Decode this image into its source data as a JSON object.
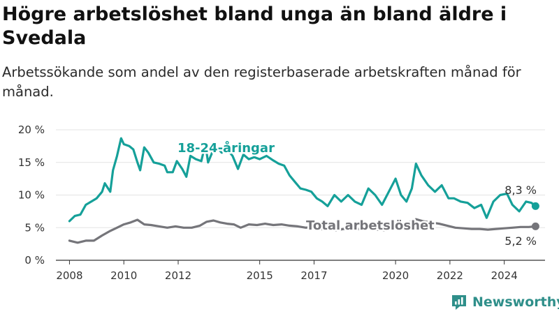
{
  "title": "Högre arbetslöshet bland unga än bland äldre i Svedala",
  "subtitle": "Arbetssökande som andel av den registerbaserade arbetskraften månad för månad.",
  "brand": "Newsworthy",
  "colors": {
    "youth": "#15a099",
    "total": "#75757a",
    "grid": "#e3e3e3",
    "axis": "#333333",
    "brand": "#2f8f8a"
  },
  "chart_data": {
    "type": "line",
    "xlim": [
      2007.5,
      2025.5
    ],
    "ylim": [
      0,
      20
    ],
    "y_ticks": [
      0,
      5,
      10,
      15,
      20
    ],
    "y_tick_labels": [
      "0 %",
      "5 %",
      "10 %",
      "15 %",
      "20 %"
    ],
    "x_ticks": [
      2008,
      2010,
      2012,
      2015,
      2017,
      2020,
      2022,
      2024
    ],
    "x_tick_labels": [
      "2008",
      "2010",
      "2012",
      "2015",
      "2017",
      "2020",
      "2022",
      "2024"
    ],
    "grid": true,
    "series": [
      {
        "name": "18-24-åringar",
        "color": "#15a099",
        "end_label": "8,3 %",
        "points": [
          [
            2008.0,
            6.0
          ],
          [
            2008.2,
            6.8
          ],
          [
            2008.4,
            7.0
          ],
          [
            2008.6,
            8.5
          ],
          [
            2008.8,
            9.0
          ],
          [
            2009.0,
            9.5
          ],
          [
            2009.2,
            10.5
          ],
          [
            2009.3,
            11.8
          ],
          [
            2009.5,
            10.5
          ],
          [
            2009.6,
            13.8
          ],
          [
            2009.75,
            16.0
          ],
          [
            2009.9,
            18.7
          ],
          [
            2010.0,
            17.8
          ],
          [
            2010.2,
            17.5
          ],
          [
            2010.35,
            17.0
          ],
          [
            2010.5,
            15.0
          ],
          [
            2010.6,
            13.8
          ],
          [
            2010.75,
            17.3
          ],
          [
            2010.9,
            16.5
          ],
          [
            2011.1,
            15.0
          ],
          [
            2011.3,
            14.8
          ],
          [
            2011.5,
            14.5
          ],
          [
            2011.6,
            13.5
          ],
          [
            2011.8,
            13.5
          ],
          [
            2011.95,
            15.2
          ],
          [
            2012.15,
            14.0
          ],
          [
            2012.3,
            12.8
          ],
          [
            2012.45,
            16.0
          ],
          [
            2012.65,
            15.5
          ],
          [
            2012.85,
            15.2
          ],
          [
            2013.0,
            17.8
          ],
          [
            2013.1,
            15.0
          ],
          [
            2013.25,
            16.5
          ],
          [
            2013.45,
            17.2
          ],
          [
            2013.6,
            16.5
          ],
          [
            2013.8,
            17.0
          ],
          [
            2014.0,
            16.0
          ],
          [
            2014.2,
            14.0
          ],
          [
            2014.4,
            16.2
          ],
          [
            2014.6,
            15.5
          ],
          [
            2014.8,
            15.8
          ],
          [
            2015.0,
            15.5
          ],
          [
            2015.25,
            16.0
          ],
          [
            2015.5,
            15.3
          ],
          [
            2015.7,
            14.8
          ],
          [
            2015.9,
            14.5
          ],
          [
            2016.1,
            13.0
          ],
          [
            2016.3,
            12.0
          ],
          [
            2016.5,
            11.0
          ],
          [
            2016.7,
            10.8
          ],
          [
            2016.9,
            10.5
          ],
          [
            2017.1,
            9.5
          ],
          [
            2017.3,
            9.0
          ],
          [
            2017.5,
            8.3
          ],
          [
            2017.75,
            10.0
          ],
          [
            2018.0,
            9.0
          ],
          [
            2018.25,
            10.0
          ],
          [
            2018.5,
            9.0
          ],
          [
            2018.75,
            8.5
          ],
          [
            2019.0,
            11.0
          ],
          [
            2019.25,
            10.0
          ],
          [
            2019.5,
            8.5
          ],
          [
            2019.75,
            10.5
          ],
          [
            2020.0,
            12.5
          ],
          [
            2020.2,
            10.0
          ],
          [
            2020.4,
            9.0
          ],
          [
            2020.6,
            11.0
          ],
          [
            2020.75,
            14.8
          ],
          [
            2020.95,
            13.0
          ],
          [
            2021.2,
            11.5
          ],
          [
            2021.45,
            10.5
          ],
          [
            2021.7,
            11.5
          ],
          [
            2021.95,
            9.5
          ],
          [
            2022.15,
            9.5
          ],
          [
            2022.4,
            9.0
          ],
          [
            2022.65,
            8.8
          ],
          [
            2022.9,
            8.0
          ],
          [
            2023.15,
            8.5
          ],
          [
            2023.35,
            6.5
          ],
          [
            2023.6,
            9.0
          ],
          [
            2023.85,
            10.0
          ],
          [
            2024.1,
            10.2
          ],
          [
            2024.3,
            8.5
          ],
          [
            2024.55,
            7.5
          ],
          [
            2024.8,
            9.0
          ],
          [
            2025.0,
            8.8
          ],
          [
            2025.15,
            8.3
          ]
        ]
      },
      {
        "name": "Total arbetslöshet",
        "color": "#75757a",
        "end_label": "5,2 %",
        "points": [
          [
            2008.0,
            3.0
          ],
          [
            2008.3,
            2.7
          ],
          [
            2008.6,
            3.0
          ],
          [
            2008.9,
            3.0
          ],
          [
            2009.2,
            3.8
          ],
          [
            2009.5,
            4.5
          ],
          [
            2009.75,
            5.0
          ],
          [
            2010.0,
            5.5
          ],
          [
            2010.25,
            5.8
          ],
          [
            2010.5,
            6.2
          ],
          [
            2010.75,
            5.5
          ],
          [
            2011.0,
            5.4
          ],
          [
            2011.3,
            5.2
          ],
          [
            2011.6,
            5.0
          ],
          [
            2011.9,
            5.2
          ],
          [
            2012.2,
            5.0
          ],
          [
            2012.5,
            5.0
          ],
          [
            2012.8,
            5.3
          ],
          [
            2013.05,
            5.9
          ],
          [
            2013.3,
            6.1
          ],
          [
            2013.55,
            5.8
          ],
          [
            2013.8,
            5.6
          ],
          [
            2014.05,
            5.5
          ],
          [
            2014.3,
            5.0
          ],
          [
            2014.6,
            5.5
          ],
          [
            2014.9,
            5.4
          ],
          [
            2015.2,
            5.6
          ],
          [
            2015.5,
            5.4
          ],
          [
            2015.8,
            5.5
          ],
          [
            2016.1,
            5.3
          ],
          [
            2016.4,
            5.2
          ],
          [
            2016.7,
            5.0
          ],
          [
            2016.9,
            5.1
          ],
          [
            2017.2,
            4.8
          ],
          [
            2017.5,
            4.7
          ],
          [
            2017.8,
            4.6
          ],
          [
            2018.1,
            4.8
          ],
          [
            2018.4,
            4.7
          ],
          [
            2018.7,
            4.8
          ],
          [
            2019.0,
            4.9
          ],
          [
            2019.3,
            4.7
          ],
          [
            2019.6,
            4.6
          ],
          [
            2019.9,
            5.0
          ],
          [
            2020.2,
            5.2
          ],
          [
            2020.5,
            5.8
          ],
          [
            2020.75,
            6.3
          ],
          [
            2021.0,
            6.0
          ],
          [
            2021.3,
            5.8
          ],
          [
            2021.6,
            5.6
          ],
          [
            2021.9,
            5.3
          ],
          [
            2022.2,
            5.0
          ],
          [
            2022.5,
            4.9
          ],
          [
            2022.8,
            4.8
          ],
          [
            2023.1,
            4.8
          ],
          [
            2023.4,
            4.7
          ],
          [
            2023.7,
            4.8
          ],
          [
            2024.0,
            4.9
          ],
          [
            2024.3,
            5.0
          ],
          [
            2024.6,
            5.1
          ],
          [
            2024.9,
            5.1
          ],
          [
            2025.15,
            5.2
          ]
        ]
      }
    ]
  }
}
